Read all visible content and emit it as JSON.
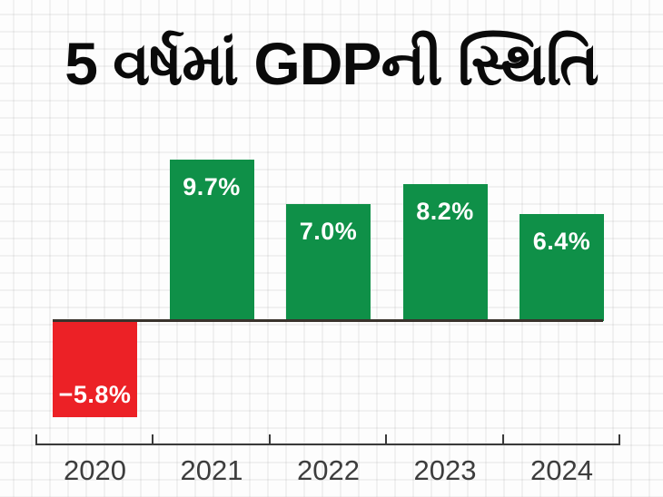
{
  "title": "5 વર્ષમાં GDPની સ્થિતિ",
  "chart_data": {
    "type": "bar",
    "title": "5 વર્ષમાં GDPની સ્થિતિ",
    "xlabel": "",
    "ylabel": "",
    "categories": [
      "2020",
      "2021",
      "2022",
      "2023",
      "2024"
    ],
    "values": [
      -5.8,
      9.7,
      7.0,
      8.2,
      6.4
    ],
    "value_labels": [
      "−5.8%",
      "9.7%",
      "7.0%",
      "8.2%",
      "6.4%"
    ],
    "ylim": [
      -7,
      11
    ],
    "grid": "faint light-gray background squares",
    "legend": "none",
    "colors": {
      "positive_bar": "#0f9048",
      "negative_bar": "#ec2126",
      "value_text": "#ffffff",
      "baseline": "#39332c",
      "axis": "#3a3a3a",
      "tick_label": "#3d3d3d",
      "title_text": "#0a0a0a",
      "background": "#fdfdfd"
    }
  }
}
